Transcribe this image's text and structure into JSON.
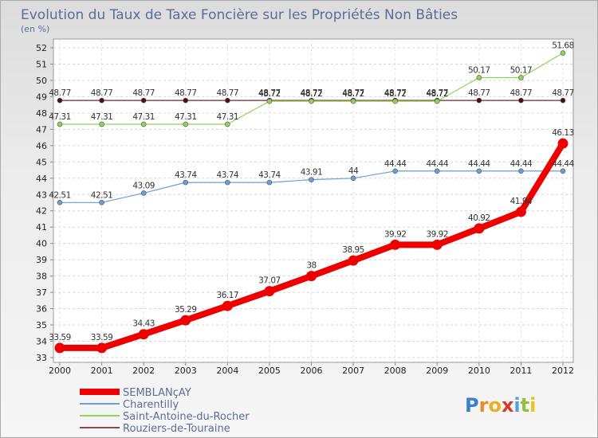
{
  "chart_data": {
    "type": "line",
    "title": "Evolution du Taux de Taxe Foncière sur les Propriétés Non Bâties",
    "ylabel": "(en %)",
    "xlabel": "",
    "x": [
      "2000",
      "2001",
      "2002",
      "2003",
      "2004",
      "2005",
      "2006",
      "2007",
      "2008",
      "2009",
      "2010",
      "2011",
      "2012"
    ],
    "ylim": [
      33,
      52
    ],
    "grid": true,
    "legend_position": "bottom-left",
    "series": [
      {
        "name": "SEMBLANçAY",
        "color": "#ee0000",
        "values": [
          33.59,
          33.59,
          34.43,
          35.29,
          36.17,
          37.07,
          38,
          38.95,
          39.92,
          39.92,
          40.92,
          41.94,
          46.13
        ],
        "labels": [
          "33.59",
          "33.59",
          "34.43",
          "35.29",
          "36.17",
          "37.07",
          "38",
          "38.95",
          "39.92",
          "39.92",
          "40.92",
          "41.94",
          "46.13"
        ]
      },
      {
        "name": "Charentilly",
        "color": "#6a9fd0",
        "values": [
          42.51,
          42.51,
          43.09,
          43.74,
          43.74,
          43.74,
          43.91,
          44,
          44.44,
          44.44,
          44.44,
          44.44,
          44.44
        ],
        "labels": [
          "42.51",
          "42.51",
          "43.09",
          "43.74",
          "43.74",
          "43.74",
          "43.91",
          "44",
          "44.44",
          "44.44",
          "44.44",
          "44.44",
          "44.44"
        ]
      },
      {
        "name": "Saint-Antoine-du-Rocher",
        "color": "#8ed45a",
        "values": [
          47.31,
          47.31,
          47.31,
          47.31,
          47.31,
          48.72,
          48.72,
          48.72,
          48.72,
          48.72,
          50.17,
          50.17,
          51.68
        ],
        "labels": [
          "47.31",
          "47.31",
          "47.31",
          "47.31",
          "47.31",
          "48.72",
          "48.72",
          "48.72",
          "48.72",
          "48.72",
          "50.17",
          "50.17",
          "51.68"
        ]
      },
      {
        "name": "Rouziers-de-Touraine",
        "color": "#8a4a4a",
        "values": [
          48.77,
          48.77,
          48.77,
          48.77,
          48.77,
          48.77,
          48.77,
          48.77,
          48.77,
          48.77,
          48.77,
          48.77,
          48.77
        ],
        "labels": [
          "48.77",
          "48.77",
          "48.77",
          "48.77",
          "48.77",
          "48.77",
          "48.77",
          "48.77",
          "48.77",
          "48.77",
          "48.77",
          "48.77",
          "48.77"
        ]
      }
    ]
  },
  "logo": {
    "text": "Proxiti"
  }
}
